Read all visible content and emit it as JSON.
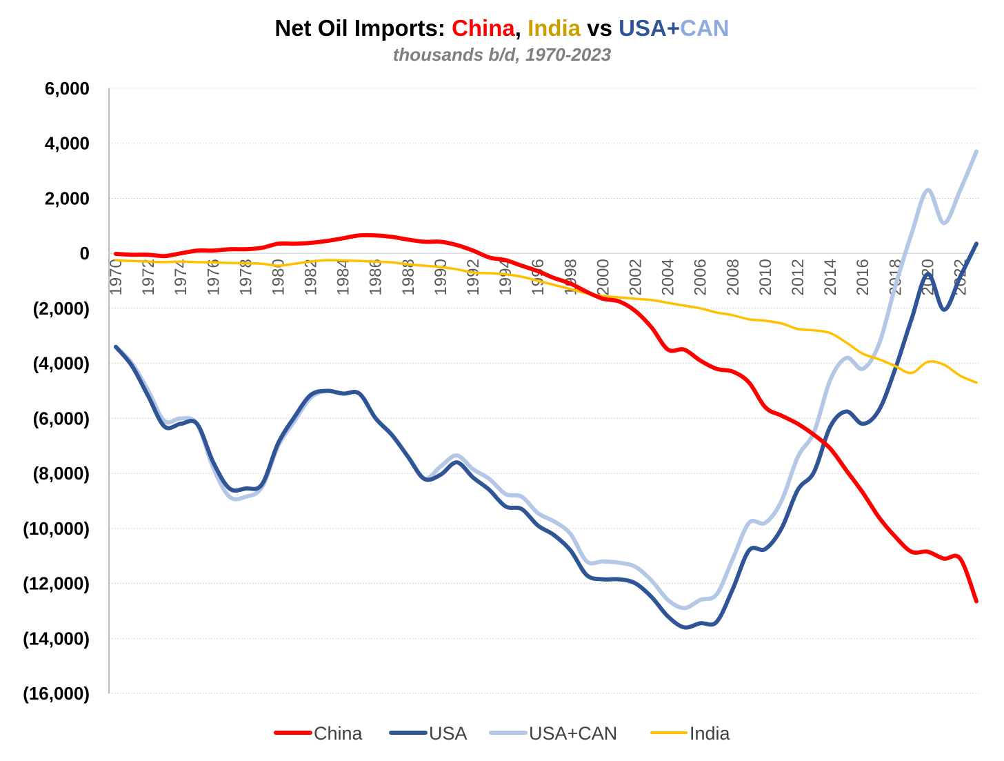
{
  "title": {
    "part1": "Net Oil Imports: ",
    "china": "China",
    "sep": ", ",
    "india": "India",
    "vs": " vs ",
    "usa": "USA",
    "plus": "+",
    "can": "CAN"
  },
  "subtitle": "thousands b/d, 1970-2023",
  "colors": {
    "china": "#ff0000",
    "india": "#c9a000",
    "india_line": "#ffc000",
    "usa": "#2f5597",
    "usacan": "#b4c7e7"
  },
  "chart_data": {
    "type": "line",
    "ylim": [
      -16000,
      6000
    ],
    "yticks": [
      6000,
      4000,
      2000,
      0,
      -2000,
      -4000,
      -6000,
      -8000,
      -10000,
      -12000,
      -14000,
      -16000
    ],
    "ytick_labels": [
      "6,000",
      "4,000",
      "2,000",
      "0",
      "(2,000)",
      "(4,000)",
      "(6,000)",
      "(8,000)",
      "(10,000)",
      "(12,000)",
      "(14,000)",
      "(16,000)"
    ],
    "xtick_labels": [
      "1970",
      "1972",
      "1974",
      "1976",
      "1978",
      "1980",
      "1982",
      "1984",
      "1986",
      "1988",
      "1990",
      "1992",
      "1994",
      "1996",
      "1998",
      "2000",
      "2002",
      "2004",
      "2006",
      "2008",
      "2010",
      "2012",
      "2014",
      "2016",
      "2018",
      "2020",
      "2022"
    ],
    "x": [
      1970,
      1971,
      1972,
      1973,
      1974,
      1975,
      1976,
      1977,
      1978,
      1979,
      1980,
      1981,
      1982,
      1983,
      1984,
      1985,
      1986,
      1987,
      1988,
      1989,
      1990,
      1991,
      1992,
      1993,
      1994,
      1995,
      1996,
      1997,
      1998,
      1999,
      2000,
      2001,
      2002,
      2003,
      2004,
      2005,
      2006,
      2007,
      2008,
      2009,
      2010,
      2011,
      2012,
      2013,
      2014,
      2015,
      2016,
      2017,
      2018,
      2019,
      2020,
      2021,
      2022,
      2023
    ],
    "grid": true,
    "legend_position": "bottom",
    "series": [
      {
        "name": "China",
        "key": "china",
        "values": [
          -20,
          -50,
          -50,
          -100,
          0,
          100,
          100,
          150,
          150,
          200,
          350,
          350,
          380,
          450,
          550,
          650,
          650,
          600,
          500,
          420,
          420,
          300,
          100,
          -150,
          -250,
          -450,
          -650,
          -900,
          -1100,
          -1400,
          -1650,
          -1750,
          -2100,
          -2700,
          -3500,
          -3500,
          -3900,
          -4200,
          -4300,
          -4700,
          -5600,
          -5900,
          -6200,
          -6600,
          -7100,
          -7900,
          -8700,
          -9600,
          -10300,
          -10850,
          -10850,
          -11100,
          -11100,
          -12650
        ]
      },
      {
        "name": "USA",
        "key": "usa",
        "values": [
          -3400,
          -4100,
          -5200,
          -6300,
          -6200,
          -6200,
          -7600,
          -8550,
          -8550,
          -8400,
          -6900,
          -5950,
          -5150,
          -5000,
          -5100,
          -5100,
          -6000,
          -6600,
          -7400,
          -8200,
          -8050,
          -7600,
          -8150,
          -8600,
          -9200,
          -9300,
          -9900,
          -10250,
          -10800,
          -11700,
          -11850,
          -11850,
          -12000,
          -12500,
          -13200,
          -13600,
          -13450,
          -13400,
          -12200,
          -10800,
          -10750,
          -10000,
          -8600,
          -7950,
          -6300,
          -5750,
          -6200,
          -5700,
          -4200,
          -2400,
          -750,
          -2050,
          -850,
          350
        ]
      },
      {
        "name": "USA+CAN",
        "key": "usacan",
        "values": [
          -3400,
          -4000,
          -5000,
          -6100,
          -6000,
          -6200,
          -7800,
          -8850,
          -8850,
          -8500,
          -7000,
          -6100,
          -5250,
          -5000,
          -5100,
          -5100,
          -6000,
          -6600,
          -7400,
          -8200,
          -7750,
          -7350,
          -7850,
          -8200,
          -8750,
          -8850,
          -9450,
          -9750,
          -10200,
          -11200,
          -11200,
          -11250,
          -11400,
          -11900,
          -12600,
          -12900,
          -12600,
          -12400,
          -11100,
          -9800,
          -9800,
          -9000,
          -7400,
          -6500,
          -4600,
          -3800,
          -4200,
          -3300,
          -1200,
          700,
          2300,
          1100,
          2300,
          3700
        ]
      },
      {
        "name": "India",
        "key": "india_line",
        "values": [
          -250,
          -280,
          -300,
          -320,
          -300,
          -320,
          -330,
          -350,
          -360,
          -380,
          -450,
          -380,
          -300,
          -250,
          -260,
          -280,
          -300,
          -330,
          -400,
          -450,
          -500,
          -580,
          -700,
          -720,
          -760,
          -850,
          -1000,
          -1150,
          -1300,
          -1450,
          -1550,
          -1600,
          -1650,
          -1700,
          -1800,
          -1900,
          -2000,
          -2150,
          -2250,
          -2400,
          -2450,
          -2550,
          -2750,
          -2800,
          -2900,
          -3250,
          -3650,
          -3850,
          -4100,
          -4350,
          -3950,
          -4050,
          -4450,
          -4700
        ]
      }
    ]
  }
}
